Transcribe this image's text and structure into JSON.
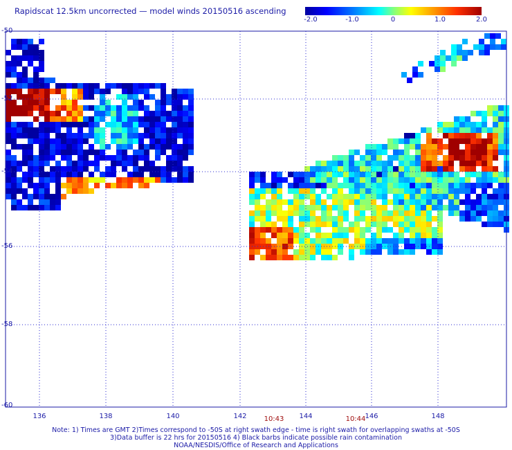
{
  "title": "Rapidscat 12.5km uncorrected — model winds 20150516 ascending",
  "colorbar": {
    "labels": [
      "-2.0",
      "-1.0",
      "0",
      "1.0",
      "2.0"
    ],
    "min": -2.0,
    "max": 2.0
  },
  "axes": {
    "lat_labels": [
      "-50",
      "-52",
      "-54",
      "-56",
      "-58",
      "-60"
    ],
    "lon_labels": [
      "136",
      "138",
      "140",
      "142",
      "144",
      "146",
      "148"
    ]
  },
  "times": [
    "10:43",
    "10:44"
  ],
  "notes": {
    "line1": "Note: 1) Times are GMT 2)Times correspond to -50S at right swath edge - time is right swath for overlapping swaths at -50S",
    "line2": "3)Data buffer is 22 hrs for 20150516 4) Black barbs indicate possible rain contamination",
    "line3": "NOAA/NESDIS/Office of Research and Applications"
  },
  "colors": {
    "text": "#1a1aa6",
    "time": "#a01010",
    "grid": "#2a2ad0"
  }
}
